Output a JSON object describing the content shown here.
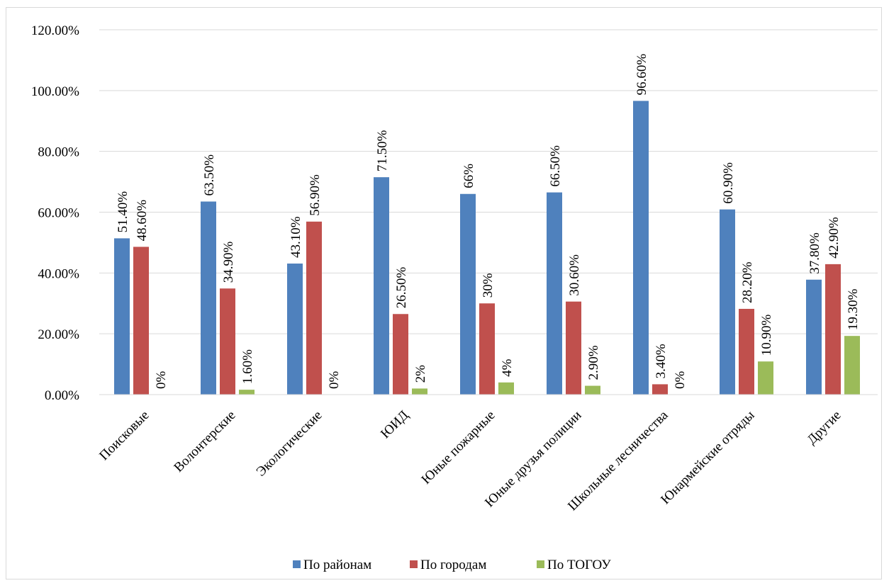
{
  "chart_data": {
    "type": "bar",
    "categories": [
      "Поисковые",
      "Волонтерские",
      "Экологические",
      "ЮИД",
      "Юные пожарные",
      "Юные друзья полиции",
      "Школьные лесничества",
      "Юнармейские отряды",
      "Другие"
    ],
    "series": [
      {
        "name": "По районам",
        "color": "#4f81bd",
        "values": [
          51.4,
          63.5,
          43.1,
          71.5,
          66,
          66.5,
          96.6,
          60.9,
          37.8
        ],
        "labels": [
          "51.40%",
          "63.50%",
          "43.10%",
          "71.50%",
          "66%",
          "66.50%",
          "96.60%",
          "60.90%",
          "37.80%"
        ]
      },
      {
        "name": "По городам",
        "color": "#c0504d",
        "values": [
          48.6,
          34.9,
          56.9,
          26.5,
          30,
          30.6,
          3.4,
          28.2,
          42.9
        ],
        "labels": [
          "48.60%",
          "34.90%",
          "56.90%",
          "26.50%",
          "30%",
          "30.60%",
          "3.40%",
          "28.20%",
          "42.90%"
        ]
      },
      {
        "name": "По ТОГОУ",
        "color": "#9bbb59",
        "values": [
          0,
          1.6,
          0,
          2,
          4,
          2.9,
          0,
          10.9,
          19.3
        ],
        "labels": [
          "0%",
          "1.60%",
          "0%",
          "2%",
          "4%",
          "2.90%",
          "0%",
          "10.90%",
          "19.30%"
        ]
      }
    ],
    "yticks": [
      "0.00%",
      "20.00%",
      "40.00%",
      "60.00%",
      "80.00%",
      "100.00%",
      "120.00%"
    ],
    "ylim": [
      0,
      120
    ],
    "grid": true,
    "legend": "bottom"
  }
}
